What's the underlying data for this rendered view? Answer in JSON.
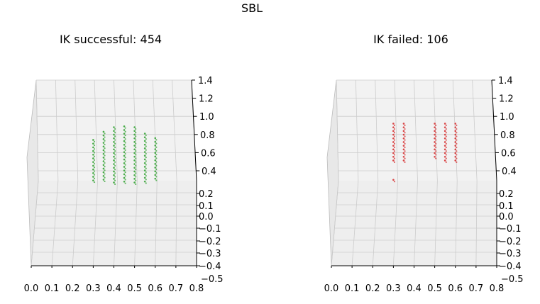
{
  "figure_title": "SBL",
  "chart_data": [
    {
      "type": "scatter",
      "title": "IK successful: 454",
      "color": "#2ca02c",
      "x_ticks": [
        "0.0",
        "0.1",
        "0.2",
        "0.3",
        "0.4",
        "0.5",
        "0.6",
        "0.7",
        "0.8"
      ],
      "z_ticks_upper": [
        "1.4",
        "1.2",
        "1.0",
        "0.8",
        "0.6",
        "0.4"
      ],
      "y_ticks_lower": [
        "0.2",
        "0.1",
        "0.0",
        "−0.1",
        "−0.2",
        "−0.3",
        "−0.4",
        "−0.5"
      ],
      "xlim": [
        0.0,
        0.8
      ],
      "zlim": [
        0.4,
        1.4
      ],
      "ylim": [
        -0.5,
        0.2
      ],
      "grid": true,
      "columns": [
        {
          "x": 0.3,
          "z": [
            0.27,
            0.74
          ]
        },
        {
          "x": 0.35,
          "z": [
            0.27,
            0.83
          ]
        },
        {
          "x": 0.4,
          "z": [
            0.27,
            0.88
          ]
        },
        {
          "x": 0.45,
          "z": [
            0.27,
            0.89
          ]
        },
        {
          "x": 0.5,
          "z": [
            0.27,
            0.88
          ]
        },
        {
          "x": 0.55,
          "z": [
            0.27,
            0.81
          ]
        },
        {
          "x": 0.6,
          "z": [
            0.3,
            0.76
          ]
        }
      ]
    },
    {
      "type": "scatter",
      "title": "IK failed: 106",
      "color": "#d62728",
      "x_ticks": [
        "0.0",
        "0.1",
        "0.2",
        "0.3",
        "0.4",
        "0.5",
        "0.6",
        "0.7",
        "0.8"
      ],
      "z_ticks_upper": [
        "1.4",
        "1.2",
        "1.0",
        "0.8",
        "0.6",
        "0.4"
      ],
      "y_ticks_lower": [
        "0.2",
        "0.1",
        "0.0",
        "−0.1",
        "−0.2",
        "−0.3",
        "−0.4",
        "−0.5"
      ],
      "xlim": [
        0.0,
        0.8
      ],
      "zlim": [
        0.4,
        1.4
      ],
      "ylim": [
        -0.5,
        0.2
      ],
      "grid": true,
      "columns": [
        {
          "x": 0.3,
          "z": [
            0.5,
            0.92
          ]
        },
        {
          "x": 0.3,
          "z": [
            0.27,
            0.3
          ]
        },
        {
          "x": 0.35,
          "z": [
            0.5,
            0.92
          ]
        },
        {
          "x": 0.5,
          "z": [
            0.55,
            0.92
          ]
        },
        {
          "x": 0.55,
          "z": [
            0.5,
            0.92
          ]
        },
        {
          "x": 0.6,
          "z": [
            0.48,
            0.92
          ]
        }
      ]
    }
  ]
}
